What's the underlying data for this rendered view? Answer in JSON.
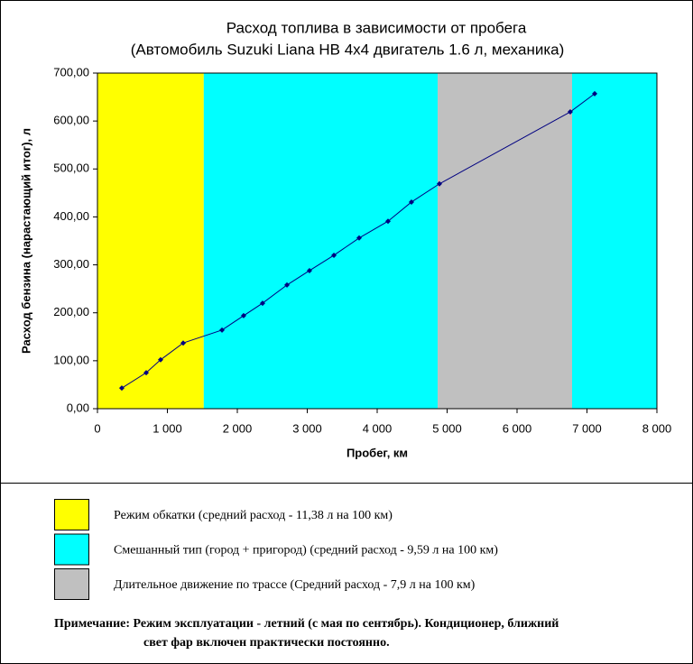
{
  "chart_data": {
    "type": "line",
    "title": "Расход топлива в зависимости от пробега",
    "subtitle": "(Автомобиль Suzuki Liana HB 4x4 двигатель 1.6 л, механика)",
    "xlabel": "Пробег, км",
    "ylabel": "Расход бензина (нарастающий итог), л",
    "x": [
      348,
      697,
      903,
      1226,
      1781,
      2090,
      2361,
      2710,
      3032,
      3381,
      3742,
      4155,
      4490,
      4890,
      6761,
      7110
    ],
    "values": [
      43,
      75,
      102,
      137,
      164,
      194,
      220,
      258,
      288,
      320,
      356,
      391,
      431,
      469,
      619,
      657
    ],
    "color": "#000080",
    "xlim": [
      0,
      8000
    ],
    "ylim": [
      0,
      700
    ],
    "xticks": [
      0,
      {
        "value": 1000,
        "label": "1 000"
      },
      {
        "value": 2000,
        "label": "2 000"
      },
      {
        "value": 3000,
        "label": "3 000"
      },
      {
        "value": 4000,
        "label": "4 000"
      },
      {
        "value": 5000,
        "label": "5 000"
      },
      {
        "value": 6000,
        "label": "6 000"
      },
      {
        "value": 7000,
        "label": "7 000"
      },
      {
        "value": 8000,
        "label": "8 000"
      }
    ],
    "yticks": [
      {
        "value": 0,
        "label": "0,00"
      },
      {
        "value": 100,
        "label": "100,00"
      },
      {
        "value": 200,
        "label": "200,00"
      },
      {
        "value": 300,
        "label": "300,00"
      },
      {
        "value": 400,
        "label": "400,00"
      },
      {
        "value": 500,
        "label": "500,00"
      },
      {
        "value": 600,
        "label": "600,00"
      },
      {
        "value": 700,
        "label": "700,00"
      }
    ],
    "regions": [
      {
        "from": 0,
        "to": 1520,
        "color": "#ffff00"
      },
      {
        "from": 1520,
        "to": 4865,
        "color": "#00ffff"
      },
      {
        "from": 4865,
        "to": 6787,
        "color": "#c0c0c0"
      },
      {
        "from": 6787,
        "to": 8000,
        "color": "#00ffff"
      }
    ],
    "legend": [
      {
        "label": "Режим обкатки (средний расход - 11,38 л на 100 км)",
        "color": "#ffff00"
      },
      {
        "label": "Смешанный тип (город + пригород) (средний расход - 9,59 л на 100 км)",
        "color": "#00ffff"
      },
      {
        "label": "Длительное движение по трассе (Средний расход - 7,9 л на 100 км)",
        "color": "#c0c0c0"
      }
    ],
    "note": [
      "Примечание: Режим эксплуатации - летний (с мая по сентябрь). Кондиционер, ближний",
      "свет фар включен практически постоянно."
    ]
  }
}
